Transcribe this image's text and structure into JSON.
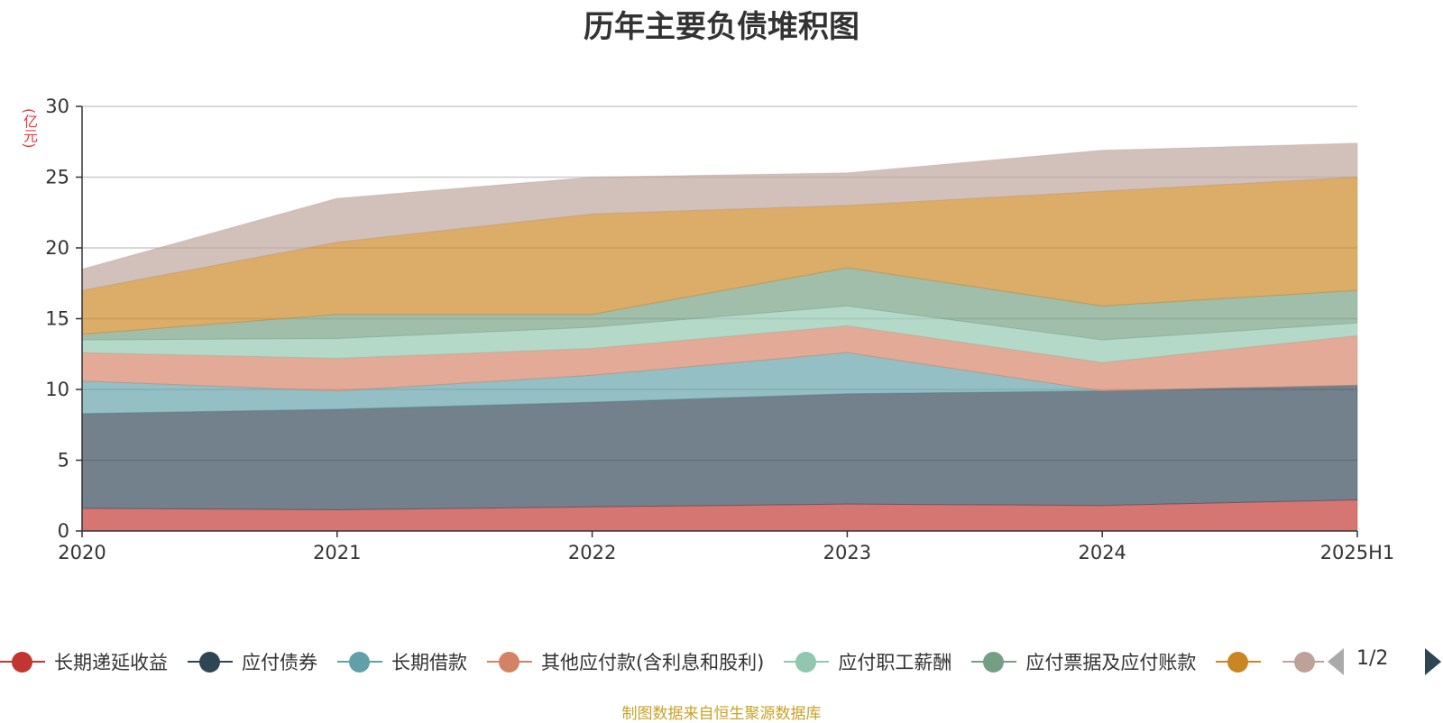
{
  "chart_data": {
    "type": "area",
    "stacked": true,
    "title": "历年主要负债堆积图",
    "unit": "(亿元)",
    "categories": [
      "2020",
      "2021",
      "2022",
      "2023",
      "2024",
      "2025H1"
    ],
    "ylim": [
      0,
      30
    ],
    "yticks": [
      0,
      5,
      10,
      15,
      20,
      25,
      30
    ],
    "grid": true,
    "legend_position": "bottom",
    "series": [
      {
        "name": "长期递延收益",
        "color": "#c23531",
        "values": [
          1.6,
          1.5,
          1.7,
          1.9,
          1.8,
          2.2
        ]
      },
      {
        "name": "应付债券",
        "color": "#2f4554",
        "values": [
          6.7,
          7.1,
          7.4,
          7.8,
          8.1,
          8.1
        ]
      },
      {
        "name": "长期借款",
        "color": "#61a0a8",
        "values": [
          2.3,
          1.3,
          1.9,
          2.9,
          0.0,
          0.0
        ]
      },
      {
        "name": "其他应付款(含利息和股利)",
        "color": "#d48265",
        "values": [
          2.0,
          2.3,
          1.9,
          1.9,
          2.0,
          3.5
        ]
      },
      {
        "name": "应付职工薪酬",
        "color": "#91c7ae",
        "values": [
          0.9,
          1.4,
          1.5,
          1.4,
          1.6,
          0.9
        ]
      },
      {
        "name": "应付票据及应付账款",
        "color": "#749f83",
        "values": [
          0.4,
          1.7,
          0.9,
          2.7,
          2.4,
          2.3
        ]
      },
      {
        "name": "",
        "color": "#ca8622",
        "values": [
          3.1,
          5.1,
          7.1,
          4.4,
          8.1,
          8.0
        ]
      },
      {
        "name": "",
        "color": "#bda29a",
        "values": [
          1.5,
          3.1,
          2.6,
          2.3,
          2.9,
          2.4
        ]
      }
    ]
  },
  "legend": {
    "page_indicator": "1/2"
  },
  "source_note": "制图数据来自恒生聚源数据库"
}
